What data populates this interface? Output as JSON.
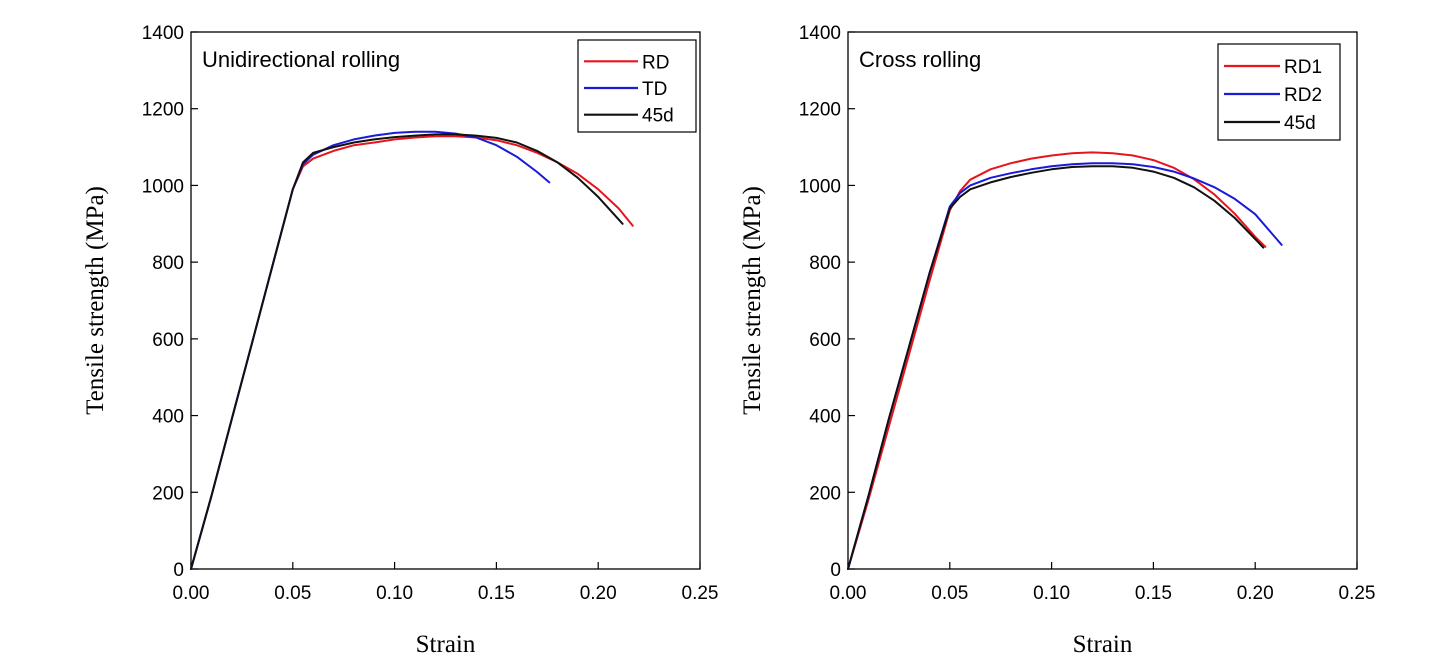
{
  "chart_data": [
    {
      "type": "line",
      "title": "Unidirectional rolling",
      "xlabel": "Strain",
      "ylabel": "Tensile strength (MPa)",
      "xlim": [
        0,
        0.25
      ],
      "ylim": [
        0,
        1400
      ],
      "xticks": [
        "0.00",
        "0.05",
        "0.10",
        "0.15",
        "0.20",
        "0.25"
      ],
      "yticks": [
        "0",
        "200",
        "400",
        "600",
        "800",
        "1000",
        "1200",
        "1400"
      ],
      "legend_position": "top-right",
      "series": [
        {
          "name": "RD",
          "color": "#e8141c",
          "x": [
            0,
            0.01,
            0.02,
            0.03,
            0.04,
            0.05,
            0.055,
            0.06,
            0.07,
            0.08,
            0.09,
            0.1,
            0.11,
            0.12,
            0.13,
            0.14,
            0.15,
            0.16,
            0.17,
            0.18,
            0.19,
            0.2,
            0.21,
            0.217
          ],
          "y": [
            0,
            190,
            390,
            590,
            790,
            990,
            1050,
            1070,
            1090,
            1105,
            1112,
            1120,
            1125,
            1128,
            1128,
            1125,
            1118,
            1105,
            1085,
            1060,
            1030,
            990,
            940,
            895
          ]
        },
        {
          "name": "TD",
          "color": "#1a1ad8",
          "x": [
            0,
            0.01,
            0.02,
            0.03,
            0.04,
            0.05,
            0.055,
            0.06,
            0.07,
            0.08,
            0.09,
            0.1,
            0.11,
            0.12,
            0.13,
            0.14,
            0.15,
            0.16,
            0.17,
            0.176
          ],
          "y": [
            0,
            190,
            390,
            590,
            790,
            990,
            1055,
            1080,
            1105,
            1120,
            1130,
            1137,
            1140,
            1140,
            1135,
            1125,
            1105,
            1075,
            1035,
            1008
          ]
        },
        {
          "name": "45d",
          "color": "#111111",
          "x": [
            0,
            0.01,
            0.02,
            0.03,
            0.04,
            0.05,
            0.055,
            0.06,
            0.07,
            0.08,
            0.09,
            0.1,
            0.11,
            0.12,
            0.13,
            0.14,
            0.15,
            0.16,
            0.17,
            0.18,
            0.19,
            0.2,
            0.212
          ],
          "y": [
            0,
            190,
            390,
            590,
            790,
            990,
            1060,
            1085,
            1100,
            1112,
            1120,
            1126,
            1130,
            1133,
            1133,
            1130,
            1124,
            1112,
            1090,
            1060,
            1020,
            970,
            900
          ]
        }
      ]
    },
    {
      "type": "line",
      "title": "Cross rolling",
      "xlabel": "Strain",
      "ylabel": "Tensile strength (MPa)",
      "xlim": [
        0,
        0.25
      ],
      "ylim": [
        0,
        1400
      ],
      "xticks": [
        "0.00",
        "0.05",
        "0.10",
        "0.15",
        "0.20",
        "0.25"
      ],
      "yticks": [
        "0",
        "200",
        "400",
        "600",
        "800",
        "1000",
        "1200",
        "1400"
      ],
      "legend_position": "top-right",
      "series": [
        {
          "name": "RD1",
          "color": "#e8141c",
          "x": [
            0,
            0.01,
            0.02,
            0.03,
            0.04,
            0.05,
            0.055,
            0.06,
            0.07,
            0.08,
            0.09,
            0.1,
            0.11,
            0.12,
            0.13,
            0.14,
            0.15,
            0.16,
            0.17,
            0.18,
            0.19,
            0.2,
            0.205
          ],
          "y": [
            0,
            180,
            370,
            560,
            750,
            935,
            985,
            1015,
            1042,
            1058,
            1070,
            1078,
            1084,
            1086,
            1084,
            1078,
            1066,
            1046,
            1016,
            976,
            926,
            866,
            840
          ]
        },
        {
          "name": "RD2",
          "color": "#1a1ad8",
          "x": [
            0,
            0.01,
            0.02,
            0.03,
            0.04,
            0.05,
            0.055,
            0.06,
            0.07,
            0.08,
            0.09,
            0.1,
            0.11,
            0.12,
            0.13,
            0.14,
            0.15,
            0.16,
            0.17,
            0.18,
            0.19,
            0.2,
            0.213
          ],
          "y": [
            0,
            190,
            390,
            580,
            770,
            945,
            980,
            1000,
            1020,
            1032,
            1042,
            1050,
            1055,
            1058,
            1058,
            1055,
            1048,
            1036,
            1018,
            995,
            965,
            925,
            845
          ]
        },
        {
          "name": "45d",
          "color": "#111111",
          "x": [
            0,
            0.01,
            0.02,
            0.03,
            0.04,
            0.05,
            0.055,
            0.06,
            0.07,
            0.08,
            0.09,
            0.1,
            0.11,
            0.12,
            0.13,
            0.14,
            0.15,
            0.16,
            0.17,
            0.18,
            0.19,
            0.2,
            0.204
          ],
          "y": [
            0,
            190,
            390,
            580,
            770,
            940,
            970,
            990,
            1008,
            1022,
            1033,
            1042,
            1048,
            1050,
            1050,
            1046,
            1036,
            1020,
            995,
            960,
            915,
            860,
            838
          ]
        }
      ]
    }
  ]
}
